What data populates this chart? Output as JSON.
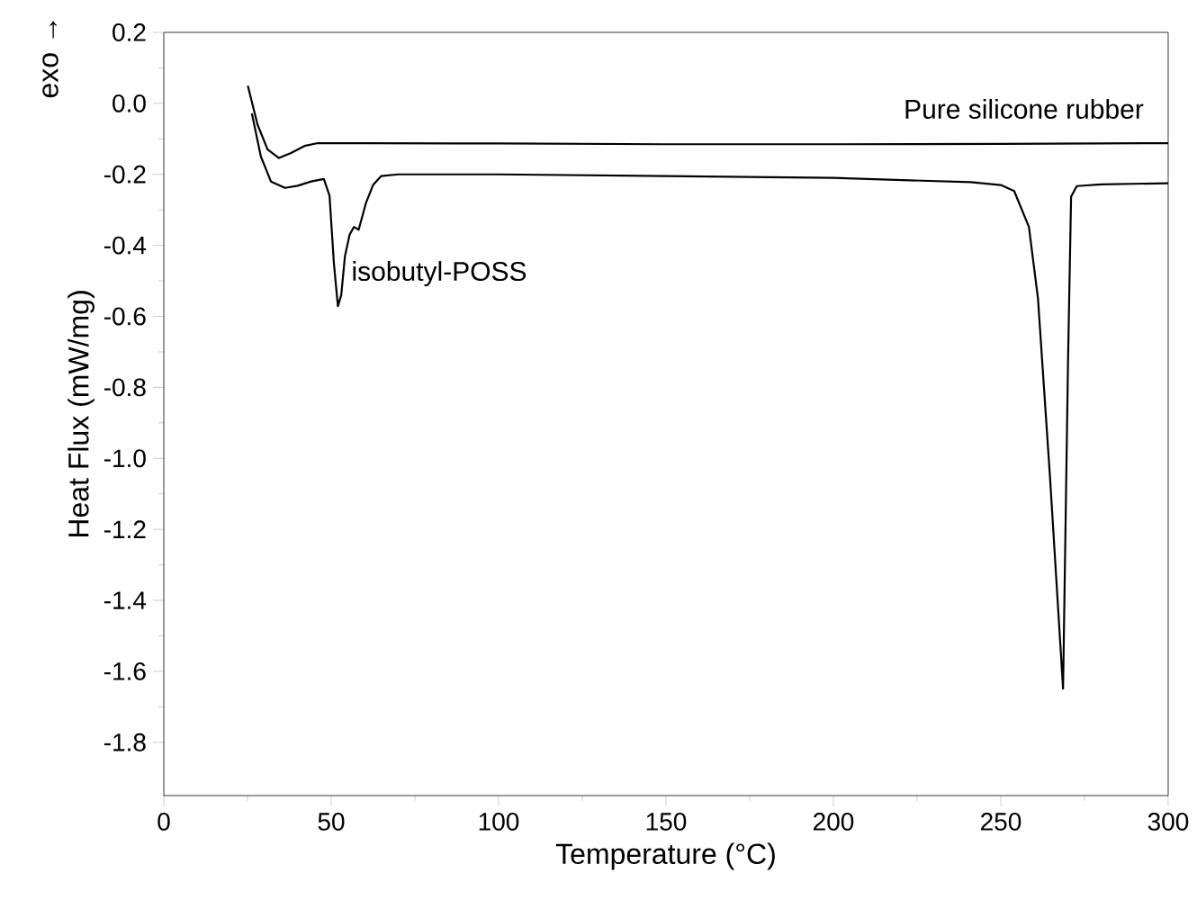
{
  "chart_data": {
    "type": "line",
    "xlabel": "Temperature (°C)",
    "ylabel": "Heat Flux (mW/mg)",
    "annotations": [
      "exo →"
    ],
    "xlim": [
      0,
      300
    ],
    "ylim": [
      -1.95,
      0.2
    ],
    "xticks": [
      0,
      50,
      100,
      150,
      200,
      250,
      300
    ],
    "yticks": [
      0.2,
      {
        "value": 0,
        "label": "0.0"
      },
      -0.2,
      -0.4,
      -0.6,
      -0.8,
      {
        "value": -1,
        "label": "-1.0"
      },
      -1.2,
      -1.4,
      -1.6,
      -1.8
    ],
    "grid": false,
    "legend": false,
    "marker": "none",
    "line_style": "solid",
    "series": [
      {
        "name": "Pure silicone rubber",
        "color": "#000000",
        "x": [
          25.1,
          28,
          31,
          34.4,
          38,
          42,
          46,
          60,
          100,
          150,
          200,
          250,
          300
        ],
        "values": [
          0.05,
          -0.06,
          -0.13,
          -0.154,
          -0.14,
          -0.12,
          -0.112,
          -0.112,
          -0.113,
          -0.115,
          -0.115,
          -0.114,
          -0.112
        ]
      },
      {
        "name": "isobutyl-POSS",
        "color": "#000000",
        "x": [
          26.3,
          29,
          32,
          36.2,
          40,
          44,
          47.8,
          49.5,
          50.8,
          52,
          53,
          54.1,
          55.5,
          56.8,
          58.2,
          60.4,
          62.5,
          64.9,
          70,
          100,
          150,
          200,
          241,
          250,
          254,
          258.4,
          261.1,
          264.7,
          268.6,
          270.1,
          271,
          272.7,
          280,
          300
        ],
        "values": [
          -0.028,
          -0.15,
          -0.22,
          -0.238,
          -0.232,
          -0.22,
          -0.213,
          -0.26,
          -0.45,
          -0.571,
          -0.54,
          -0.431,
          -0.37,
          -0.348,
          -0.356,
          -0.28,
          -0.23,
          -0.205,
          -0.2,
          -0.2,
          -0.205,
          -0.21,
          -0.222,
          -0.23,
          -0.247,
          -0.348,
          -0.549,
          -1.053,
          -1.649,
          -0.717,
          -0.263,
          -0.233,
          -0.228,
          -0.225
        ]
      }
    ]
  }
}
